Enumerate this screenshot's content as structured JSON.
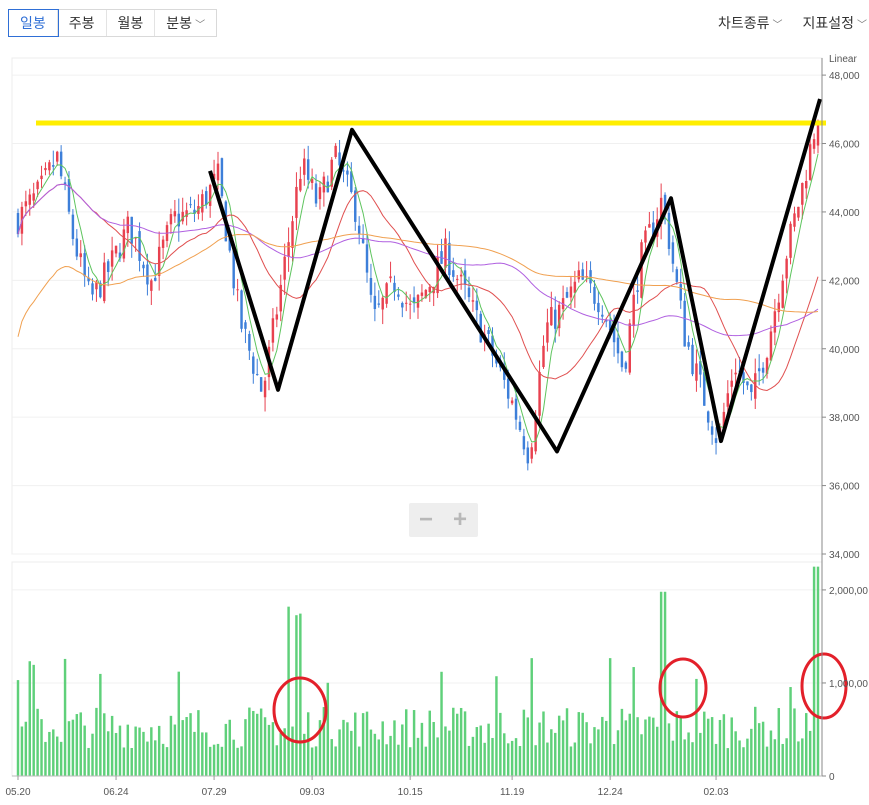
{
  "toolbar": {
    "periods": [
      {
        "label": "일봉",
        "active": true
      },
      {
        "label": "주봉"
      },
      {
        "label": "월봉"
      },
      {
        "label": "분봉",
        "dropdown": true
      }
    ],
    "chart_type_label": "차트종류",
    "indicator_label": "지표설정"
  },
  "price_axis": {
    "scale_label": "Linear",
    "ticks": [
      "48,000",
      "46,000",
      "44,000",
      "42,000",
      "40,000",
      "38,000",
      "36,000",
      "34,000"
    ]
  },
  "volume_axis": {
    "ticks": [
      "2,000,00",
      "1,000,00",
      "0"
    ]
  },
  "date_axis": {
    "ticks": [
      "05.20",
      "06.24",
      "07.29",
      "09.03",
      "10.15",
      "11.19",
      "12.24",
      "02.03"
    ]
  },
  "zoom": {
    "out_label": "−",
    "in_label": "+"
  },
  "chart_data": {
    "type": "candlestick",
    "price_range": [
      34000,
      48500
    ],
    "volume_range": [
      0,
      2300000
    ],
    "colors": {
      "up": "#e8414f",
      "down": "#3d7fd9",
      "volume": "#5fd07a",
      "annotation_line": "#ffee00",
      "annotation_zigzag": "#000000",
      "annotation_circle": "#e3202a",
      "ma5": "#5ec45e",
      "ma20": "#e05050",
      "ma60": "#b060e0",
      "ma120": "#f0a050"
    },
    "annotations": {
      "horizontal_line_price": 46600,
      "zigzag_prices": [
        45200,
        38800,
        46400,
        37000,
        44400,
        37300,
        47300
      ],
      "circled_volume_spikes": 3
    }
  }
}
